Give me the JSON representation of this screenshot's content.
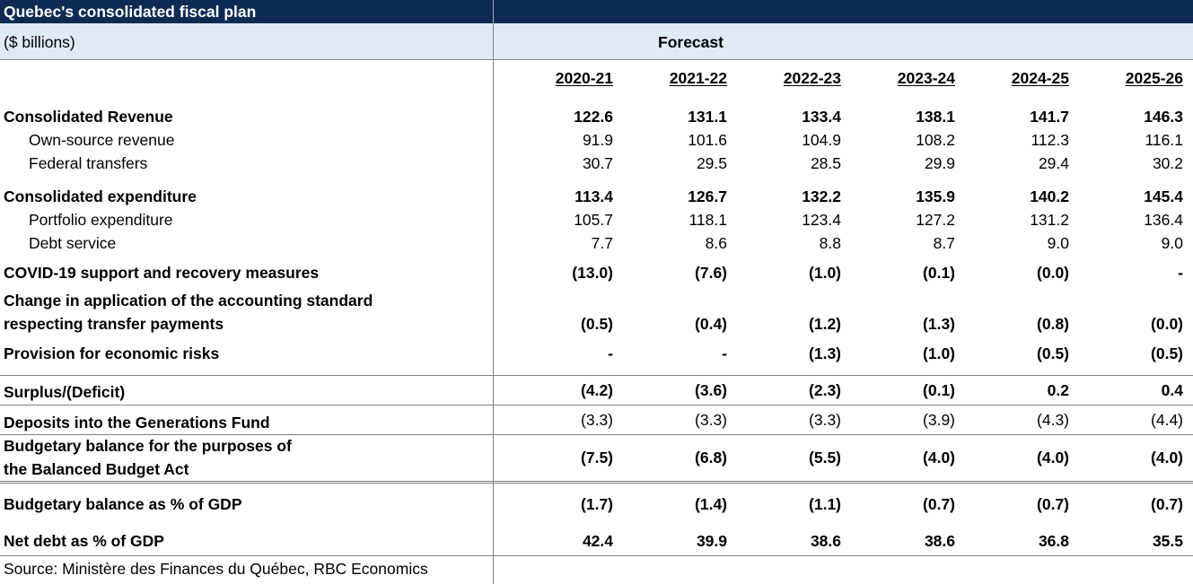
{
  "title": "Quebec's consolidated fiscal plan",
  "units": "($ billions)",
  "forecast_label": "Forecast",
  "years": [
    "2020-21",
    "2021-22",
    "2022-23",
    "2023-24",
    "2024-25",
    "2025-26"
  ],
  "rows": [
    {
      "label": "Consolidated Revenue",
      "values": [
        "122.6",
        "131.1",
        "133.4",
        "138.1",
        "141.7",
        "146.3"
      ]
    },
    {
      "label": "Own-source revenue",
      "values": [
        "91.9",
        "101.6",
        "104.9",
        "108.2",
        "112.3",
        "116.1"
      ]
    },
    {
      "label": "Federal transfers",
      "values": [
        "30.7",
        "29.5",
        "28.5",
        "29.9",
        "29.4",
        "30.2"
      ]
    },
    {
      "label": "Consolidated expenditure",
      "values": [
        "113.4",
        "126.7",
        "132.2",
        "135.9",
        "140.2",
        "145.4"
      ]
    },
    {
      "label": "Portfolio expenditure",
      "values": [
        "105.7",
        "118.1",
        "123.4",
        "127.2",
        "131.2",
        "136.4"
      ]
    },
    {
      "label": "Debt service",
      "values": [
        "7.7",
        "8.6",
        "8.8",
        "8.7",
        "9.0",
        "9.0"
      ]
    },
    {
      "label": "COVID-19 support and recovery measures",
      "values": [
        "(13.0)",
        "(7.6)",
        "(1.0)",
        "(0.1)",
        "(0.0)",
        "-"
      ]
    },
    {
      "label_lines": [
        "Change in application of the accounting standard",
        "respecting transfer payments"
      ],
      "values": [
        "(0.5)",
        "(0.4)",
        "(1.2)",
        "(1.3)",
        "(0.8)",
        "(0.0)"
      ]
    },
    {
      "label": "Provision for economic risks",
      "values": [
        "-",
        "-",
        "(1.3)",
        "(1.0)",
        "(0.5)",
        "(0.5)"
      ]
    },
    {
      "label": "Surplus/(Deficit)",
      "values": [
        "(4.2)",
        "(3.6)",
        "(2.3)",
        "(0.1)",
        "0.2",
        "0.4"
      ]
    },
    {
      "label": "Deposits into the Generations Fund",
      "values": [
        "(3.3)",
        "(3.3)",
        "(3.3)",
        "(3.9)",
        "(4.3)",
        "(4.4)"
      ]
    },
    {
      "label_lines": [
        "Budgetary balance for the purposes of",
        "the Balanced Budget Act"
      ],
      "values": [
        "(7.5)",
        "(6.8)",
        "(5.5)",
        "(4.0)",
        "(4.0)",
        "(4.0)"
      ]
    },
    {
      "label": "Budgetary balance as % of GDP",
      "values": [
        "(1.7)",
        "(1.4)",
        "(1.1)",
        "(0.7)",
        "(0.7)",
        "(0.7)"
      ]
    },
    {
      "label": "Net debt as % of GDP",
      "values": [
        "42.4",
        "39.9",
        "38.6",
        "38.6",
        "36.8",
        "35.5"
      ]
    }
  ],
  "source": "Source: Ministère des Finances du Québec, RBC Economics",
  "colors": {
    "title_bg": "#0d2b52",
    "header_bg": "#dcebf5"
  }
}
